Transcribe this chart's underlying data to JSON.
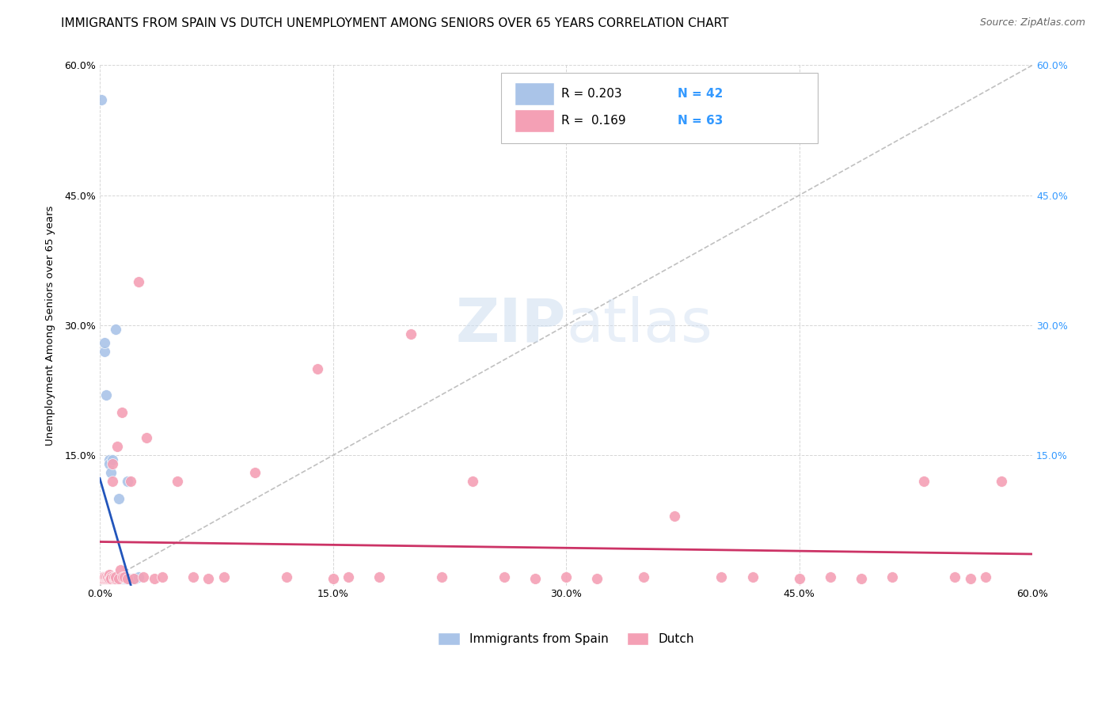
{
  "title": "IMMIGRANTS FROM SPAIN VS DUTCH UNEMPLOYMENT AMONG SENIORS OVER 65 YEARS CORRELATION CHART",
  "source": "Source: ZipAtlas.com",
  "ylabel": "Unemployment Among Seniors over 65 years",
  "xlim": [
    0.0,
    0.6
  ],
  "ylim": [
    0.0,
    0.6
  ],
  "xticks": [
    0.0,
    0.15,
    0.3,
    0.45,
    0.6
  ],
  "yticks": [
    0.0,
    0.15,
    0.3,
    0.45,
    0.6
  ],
  "xtick_labels": [
    "0.0%",
    "15.0%",
    "30.0%",
    "45.0%",
    "60.0%"
  ],
  "ytick_labels_left": [
    "",
    "15.0%",
    "30.0%",
    "45.0%",
    "60.0%"
  ],
  "ytick_labels_right": [
    "",
    "15.0%",
    "30.0%",
    "45.0%",
    "60.0%"
  ],
  "background_color": "#ffffff",
  "grid_color": "#cccccc",
  "series1_label": "Immigrants from Spain",
  "series1_color": "#aac4e8",
  "series1_line_color": "#2255bb",
  "series1_R": 0.203,
  "series1_N": 42,
  "series1_x": [
    0.001,
    0.002,
    0.002,
    0.003,
    0.003,
    0.003,
    0.004,
    0.004,
    0.004,
    0.005,
    0.005,
    0.005,
    0.005,
    0.006,
    0.006,
    0.006,
    0.007,
    0.007,
    0.007,
    0.008,
    0.008,
    0.008,
    0.009,
    0.009,
    0.01,
    0.01,
    0.01,
    0.011,
    0.011,
    0.012,
    0.012,
    0.013,
    0.014,
    0.015,
    0.016,
    0.017,
    0.018,
    0.019,
    0.021,
    0.022,
    0.023,
    0.025
  ],
  "series1_y": [
    0.56,
    0.01,
    0.008,
    0.27,
    0.28,
    0.01,
    0.22,
    0.01,
    0.008,
    0.01,
    0.01,
    0.008,
    0.008,
    0.145,
    0.14,
    0.008,
    0.01,
    0.13,
    0.008,
    0.145,
    0.01,
    0.008,
    0.008,
    0.01,
    0.295,
    0.01,
    0.008,
    0.008,
    0.01,
    0.1,
    0.008,
    0.01,
    0.008,
    0.008,
    0.008,
    0.008,
    0.12,
    0.008,
    0.008,
    0.008,
    0.008,
    0.01
  ],
  "series2_label": "Dutch",
  "series2_color": "#f4a0b5",
  "series2_line_color": "#cc3366",
  "series2_R": 0.169,
  "series2_N": 63,
  "series2_x": [
    0.001,
    0.002,
    0.002,
    0.003,
    0.003,
    0.004,
    0.004,
    0.005,
    0.005,
    0.006,
    0.006,
    0.007,
    0.007,
    0.008,
    0.008,
    0.009,
    0.009,
    0.01,
    0.01,
    0.011,
    0.012,
    0.013,
    0.014,
    0.015,
    0.016,
    0.018,
    0.02,
    0.022,
    0.025,
    0.028,
    0.03,
    0.035,
    0.04,
    0.05,
    0.06,
    0.07,
    0.08,
    0.1,
    0.12,
    0.14,
    0.15,
    0.16,
    0.18,
    0.2,
    0.22,
    0.24,
    0.26,
    0.28,
    0.3,
    0.32,
    0.35,
    0.37,
    0.4,
    0.42,
    0.45,
    0.47,
    0.49,
    0.51,
    0.53,
    0.55,
    0.56,
    0.57,
    0.58
  ],
  "series2_y": [
    0.008,
    0.01,
    0.008,
    0.008,
    0.01,
    0.008,
    0.01,
    0.008,
    0.01,
    0.008,
    0.012,
    0.01,
    0.008,
    0.12,
    0.14,
    0.008,
    0.01,
    0.008,
    0.01,
    0.16,
    0.008,
    0.018,
    0.2,
    0.01,
    0.01,
    0.008,
    0.12,
    0.008,
    0.35,
    0.01,
    0.17,
    0.008,
    0.01,
    0.12,
    0.01,
    0.008,
    0.01,
    0.13,
    0.01,
    0.25,
    0.008,
    0.01,
    0.01,
    0.29,
    0.01,
    0.12,
    0.01,
    0.008,
    0.01,
    0.008,
    0.01,
    0.08,
    0.01,
    0.01,
    0.008,
    0.01,
    0.008,
    0.01,
    0.12,
    0.01,
    0.008,
    0.01,
    0.12
  ],
  "diagonal_color": "#c0c0c0",
  "diagonal_style": "--",
  "legend_R_color": "#3399ff",
  "legend_text_R1": "R = 0.203",
  "legend_text_N1": "N = 42",
  "legend_text_R2": "R =  0.169",
  "legend_text_N2": "N = 63",
  "title_fontsize": 11,
  "source_fontsize": 9,
  "axis_label_fontsize": 9.5,
  "tick_fontsize": 9,
  "legend_fontsize": 11
}
